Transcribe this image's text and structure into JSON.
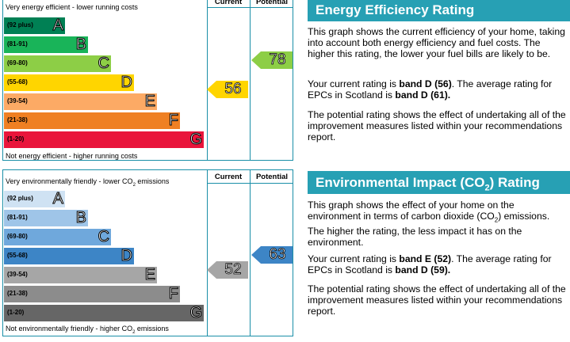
{
  "energy": {
    "top_caption": "Very energy efficient - lower running costs",
    "bottom_caption": "Not energy efficient - higher running costs",
    "col_current": "Current",
    "col_potential": "Potential",
    "bands": [
      {
        "range": "(92 plus)",
        "letter": "A",
        "color": "#008054"
      },
      {
        "range": "(81-91)",
        "letter": "B",
        "color": "#19b459"
      },
      {
        "range": "(69-80)",
        "letter": "C",
        "color": "#8dce46"
      },
      {
        "range": "(55-68)",
        "letter": "D",
        "color": "#ffd500"
      },
      {
        "range": "(39-54)",
        "letter": "E",
        "color": "#fcaa65"
      },
      {
        "range": "(21-38)",
        "letter": "F",
        "color": "#ef8023"
      },
      {
        "range": "(1-20)",
        "letter": "G",
        "color": "#e9153b"
      }
    ],
    "current": "56",
    "current_color": "#ffd500",
    "potential": "78",
    "potential_color": "#8dce46"
  },
  "environment": {
    "top_caption_pre": "Very environmentally friendly - lower CO",
    "top_caption_sub": "2",
    "top_caption_post": " emissions",
    "bottom_caption_pre": "Not environmentally friendly - higher CO",
    "bottom_caption_sub": "2",
    "bottom_caption_post": " emissions",
    "col_current": "Current",
    "col_potential": "Potential",
    "bands": [
      {
        "range": "(92 plus)",
        "letter": "A",
        "color": "#cfe2f3"
      },
      {
        "range": "(81-91)",
        "letter": "B",
        "color": "#9fc5e8"
      },
      {
        "range": "(69-80)",
        "letter": "C",
        "color": "#6fa8dc"
      },
      {
        "range": "(55-68)",
        "letter": "D",
        "color": "#3d85c6"
      },
      {
        "range": "(39-54)",
        "letter": "E",
        "color": "#a6a6a6"
      },
      {
        "range": "(21-38)",
        "letter": "F",
        "color": "#8c8c8c"
      },
      {
        "range": "(1-20)",
        "letter": "G",
        "color": "#666666"
      }
    ],
    "current": "52",
    "current_color": "#a6a6a6",
    "potential": "63",
    "potential_color": "#3d85c6"
  },
  "text": {
    "energy_title": "Energy Efficiency Rating",
    "energy_p1": "This graph shows the current efficiency of your home, taking into account both energy efficiency and fuel costs. The higher this rating, the lower your fuel bills are likely to be.",
    "energy_p2_a": "Your current rating is ",
    "energy_p2_b": "band D (56)",
    "energy_p2_c": ". The average rating for EPCs in Scotland is ",
    "energy_p2_d": "band D (61).",
    "energy_p3": "The potential rating shows the effect of undertaking all of the improvement measures listed within your recommendations report.",
    "env_title_pre": "Environmental Impact (CO",
    "env_title_sub": "2",
    "env_title_post": ") Rating",
    "env_p1_a": "This graph shows the effect of your home on the environment in terms of carbon dioxide (CO",
    "env_p1_sub": "2",
    "env_p1_b": ") emissions. The higher the rating, the less impact it has on the environment.",
    "env_p2_a": "Your current rating is ",
    "env_p2_b": "band E (52)",
    "env_p2_c": ". The average rating for EPCs in Scotland is ",
    "env_p2_d": "band D (59).",
    "env_p3": "The potential rating shows the effect of undertaking all of the improvement measures listed within your recommendations report."
  }
}
